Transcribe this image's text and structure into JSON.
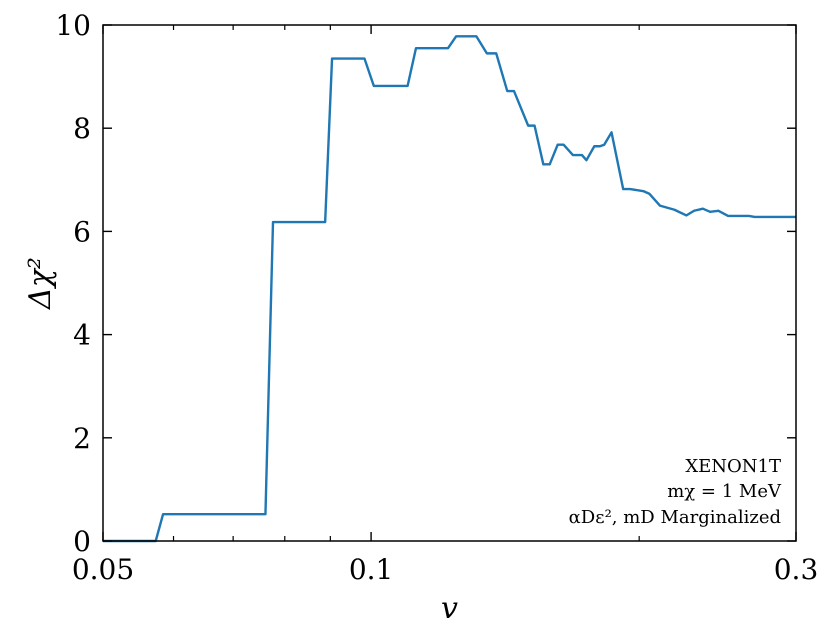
{
  "chart_data": {
    "type": "line",
    "xlabel": "v",
    "ylabel": "Δχ²",
    "x_scale": "log",
    "xlim": [
      0.05,
      0.3
    ],
    "ylim": [
      0,
      10
    ],
    "x_ticks": [
      {
        "value": 0.05,
        "label": "0.05"
      },
      {
        "value": 0.1,
        "label": "0.1"
      },
      {
        "value": 0.3,
        "label": "0.3"
      }
    ],
    "y_ticks": [
      {
        "value": 0,
        "label": "0"
      },
      {
        "value": 2,
        "label": "2"
      },
      {
        "value": 4,
        "label": "4"
      },
      {
        "value": 6,
        "label": "6"
      },
      {
        "value": 8,
        "label": "8"
      },
      {
        "value": 10,
        "label": "10"
      }
    ],
    "annotations": [
      "XENON1T",
      "mχ = 1 MeV",
      "αDε², mD Marginalized"
    ],
    "series_color": "#1f77b4",
    "series": [
      {
        "x": [
          0.05,
          0.0573,
          0.0584,
          0.0761,
          0.0776,
          0.0888,
          0.0904,
          0.0983,
          0.1007,
          0.1099,
          0.1123,
          0.122,
          0.1246,
          0.1313,
          0.1349,
          0.1382,
          0.1422,
          0.1447,
          0.1501,
          0.1526,
          0.1561,
          0.1587,
          0.162,
          0.1645,
          0.1685,
          0.1725,
          0.1745,
          0.1781,
          0.1807,
          0.1827,
          0.1862,
          0.1919,
          0.1954,
          0.2022,
          0.2053,
          0.211,
          0.2191,
          0.226,
          0.2305,
          0.2358,
          0.2402,
          0.2455,
          0.2517,
          0.2565,
          0.2619,
          0.2656,
          0.2696,
          0.3
        ],
        "y": [
          0,
          0,
          0.52,
          0.52,
          6.18,
          6.18,
          9.35,
          9.35,
          8.82,
          8.82,
          9.55,
          9.55,
          9.78,
          9.78,
          9.45,
          9.45,
          8.72,
          8.72,
          8.05,
          8.05,
          7.3,
          7.3,
          7.68,
          7.68,
          7.48,
          7.48,
          7.38,
          7.65,
          7.65,
          7.68,
          7.92,
          6.82,
          6.82,
          6.78,
          6.73,
          6.5,
          6.42,
          6.31,
          6.4,
          6.44,
          6.38,
          6.4,
          6.3,
          6.3,
          6.3,
          6.3,
          6.28,
          6.28
        ]
      }
    ]
  }
}
